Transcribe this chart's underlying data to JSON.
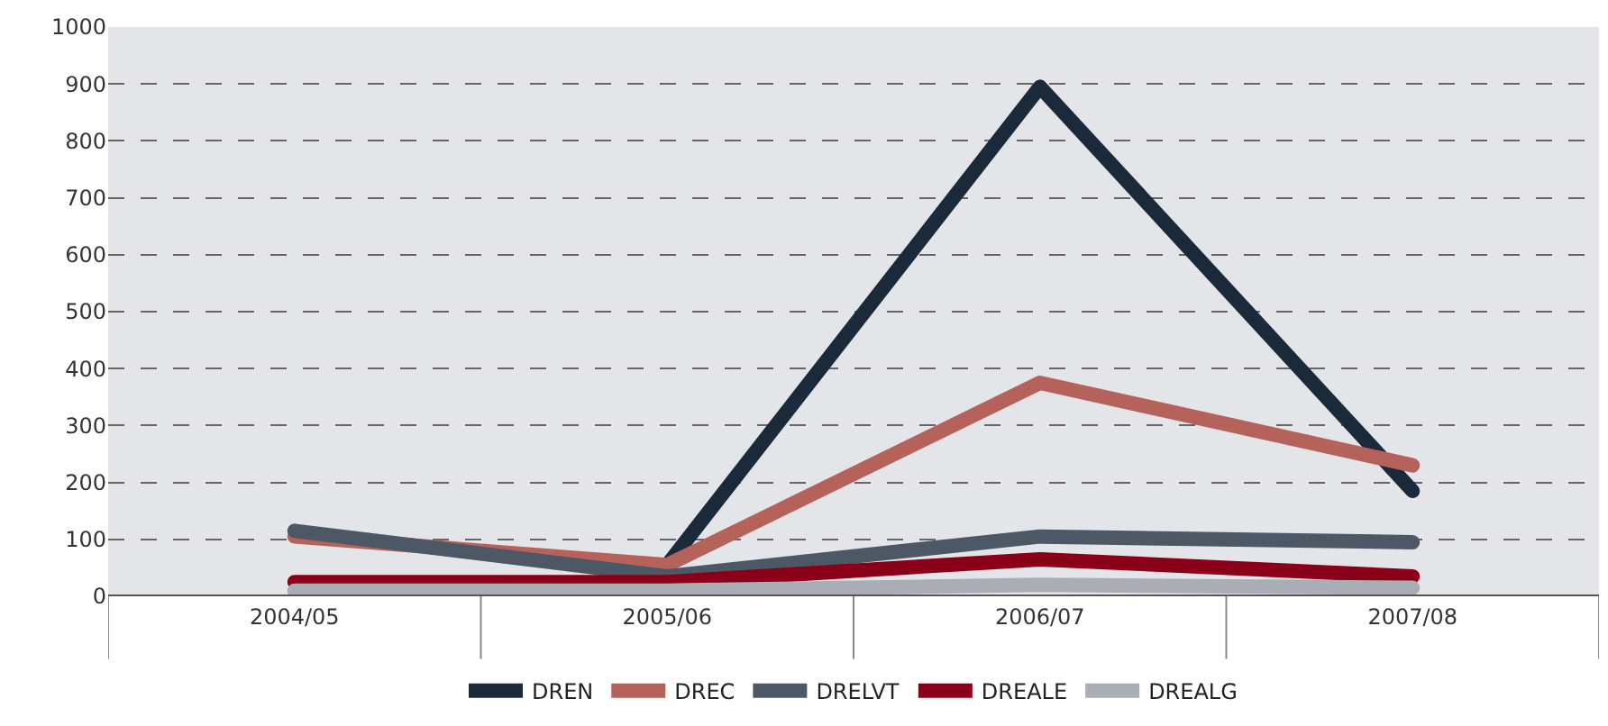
{
  "chart_data": {
    "type": "line",
    "categories": [
      "2004/05",
      "2005/06",
      "2006/07",
      "2007/08"
    ],
    "series": [
      {
        "name": "DREN",
        "color": "#1b2a3a",
        "values": [
          null,
          55,
          895,
          185
        ]
      },
      {
        "name": "DREC",
        "color": "#b5625a",
        "values": [
          105,
          55,
          375,
          230
        ]
      },
      {
        "name": "DRELVT",
        "color": "#4d5866",
        "values": [
          115,
          35,
          105,
          95
        ]
      },
      {
        "name": "DREALE",
        "color": "#8a0018",
        "values": [
          25,
          25,
          65,
          35
        ]
      },
      {
        "name": "DREALG",
        "color": "#a9adb6",
        "values": [
          10,
          10,
          20,
          15
        ]
      }
    ],
    "ylim": [
      0,
      1000
    ],
    "yticks": [
      0,
      100,
      200,
      300,
      400,
      500,
      600,
      700,
      800,
      900,
      1000
    ],
    "grid": "y",
    "legend": "bottom",
    "line_style": "solid"
  }
}
